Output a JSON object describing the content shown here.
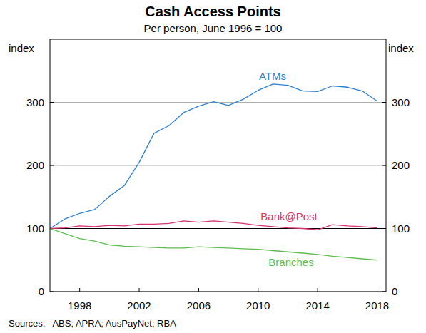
{
  "chart_data": {
    "type": "line",
    "title": "Cash Access Points",
    "subtitle": "Per person, June 1996 = 100",
    "y_label": "index",
    "source": "Sources:   ABS; APRA; AusPayNet; RBA",
    "x": [
      1996,
      1997,
      1998,
      1999,
      2000,
      2001,
      2002,
      2003,
      2004,
      2005,
      2006,
      2007,
      2008,
      2009,
      2010,
      2011,
      2012,
      2013,
      2014,
      2015,
      2016,
      2017,
      2018
    ],
    "xlim": [
      1996,
      2018.6
    ],
    "xticks": [
      1998,
      2002,
      2006,
      2010,
      2014,
      2018
    ],
    "ylim": [
      0,
      400
    ],
    "yticks": [
      0,
      100,
      200,
      300
    ],
    "grid": true,
    "series": [
      {
        "name": "ATMs",
        "color": "#2f80d1",
        "values": [
          100,
          115,
          124,
          130,
          151,
          168,
          205,
          251,
          263,
          284,
          294,
          301,
          295,
          305,
          319,
          329,
          327,
          318,
          317,
          326,
          324,
          318,
          302
        ]
      },
      {
        "name": "Bank@Post",
        "color": "#d6336c",
        "values": [
          100,
          101,
          104,
          103,
          105,
          104,
          107,
          107,
          108,
          112,
          110,
          112,
          110,
          108,
          105,
          103,
          101,
          100,
          98,
          106,
          104,
          103,
          101
        ]
      },
      {
        "name": "Branches",
        "color": "#5cbd4c",
        "values": [
          100,
          92,
          84,
          80,
          74,
          72,
          71,
          70,
          69,
          69,
          71,
          70,
          69,
          68,
          67,
          65,
          63,
          61,
          59,
          56,
          54,
          52,
          50
        ]
      }
    ]
  }
}
